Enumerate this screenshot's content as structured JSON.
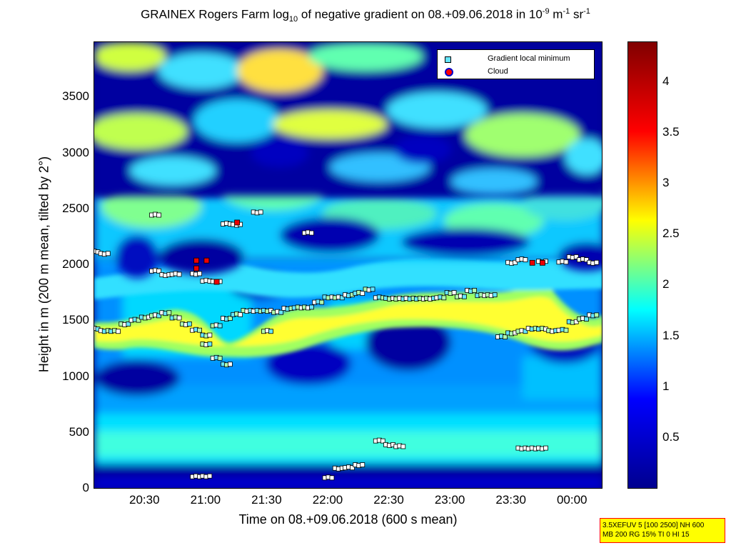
{
  "title": {
    "part1": "GRAINEX Rogers Farm log",
    "sub": "10",
    "part2": " of negative gradient on 08.+09.06.2018 in 10",
    "sup1": "-9",
    "part3": " m",
    "sup2": "-1",
    "part4": " sr",
    "sup3": "-1"
  },
  "chart_data": {
    "type": "heatmap",
    "xlabel": "Time on 08.+09.06.2018 (600 s mean)",
    "ylabel": "Height in m (200 m mean, tilted by 2°)",
    "x_range": [
      "20:05",
      "00:15"
    ],
    "ylim": [
      0,
      4000
    ],
    "x_ticks": [
      "20:30",
      "21:00",
      "21:30",
      "22:00",
      "22:30",
      "23:00",
      "23:30",
      "00:00"
    ],
    "y_ticks": [
      0,
      500,
      1000,
      1500,
      2000,
      2500,
      3000,
      3500
    ],
    "colorbar": {
      "range": [
        0,
        4.4
      ],
      "ticks": [
        "0.5",
        "1",
        "1.5",
        "2",
        "2.5",
        "3",
        "3.5",
        "4"
      ],
      "colors": [
        "#00008f",
        "#0000ff",
        "#00ffff",
        "#ffff00",
        "#ff0000",
        "#800000"
      ]
    },
    "legend": {
      "position": "top-right",
      "entries": [
        "Gradient local minimum",
        "Cloud"
      ]
    },
    "series": [
      {
        "name": "Gradient local minimum",
        "points": [
          [
            "20:05",
            1440
          ],
          [
            "20:10",
            1420
          ],
          [
            "20:15",
            1420
          ],
          [
            "20:20",
            1480
          ],
          [
            "20:25",
            1520
          ],
          [
            "20:30",
            1540
          ],
          [
            "20:35",
            1560
          ],
          [
            "20:40",
            1580
          ],
          [
            "20:45",
            1540
          ],
          [
            "20:50",
            1480
          ],
          [
            "20:55",
            1430
          ],
          [
            "21:00",
            1380
          ],
          [
            "21:05",
            1470
          ],
          [
            "21:10",
            1530
          ],
          [
            "21:15",
            1570
          ],
          [
            "21:20",
            1600
          ],
          [
            "21:25",
            1600
          ],
          [
            "21:30",
            1600
          ],
          [
            "21:35",
            1590
          ],
          [
            "21:40",
            1620
          ],
          [
            "21:45",
            1630
          ],
          [
            "21:50",
            1630
          ],
          [
            "21:55",
            1680
          ],
          [
            "22:00",
            1720
          ],
          [
            "22:05",
            1720
          ],
          [
            "22:10",
            1740
          ],
          [
            "22:15",
            1760
          ],
          [
            "22:20",
            1790
          ],
          [
            "22:25",
            1720
          ],
          [
            "22:30",
            1710
          ],
          [
            "22:35",
            1710
          ],
          [
            "22:40",
            1710
          ],
          [
            "22:45",
            1710
          ],
          [
            "22:50",
            1710
          ],
          [
            "22:55",
            1720
          ],
          [
            "23:00",
            1760
          ],
          [
            "23:05",
            1730
          ],
          [
            "23:10",
            1780
          ],
          [
            "23:15",
            1740
          ],
          [
            "23:20",
            1740
          ],
          [
            "23:25",
            1370
          ],
          [
            "23:30",
            1400
          ],
          [
            "23:35",
            1420
          ],
          [
            "23:40",
            1440
          ],
          [
            "23:45",
            1440
          ],
          [
            "23:50",
            1420
          ],
          [
            "23:55",
            1430
          ],
          [
            "00:00",
            1500
          ],
          [
            "00:05",
            1530
          ],
          [
            "00:10",
            1560
          ],
          [
            "20:05",
            2130
          ],
          [
            "20:10",
            2110
          ],
          [
            "20:35",
            1960
          ],
          [
            "20:40",
            1920
          ],
          [
            "20:45",
            1930
          ],
          [
            "20:55",
            1930
          ],
          [
            "21:00",
            1870
          ],
          [
            "21:05",
            1860
          ],
          [
            "21:10",
            2380
          ],
          [
            "21:15",
            2370
          ],
          [
            "20:35",
            2460
          ],
          [
            "21:25",
            2480
          ],
          [
            "21:50",
            2300
          ],
          [
            "21:00",
            1300
          ],
          [
            "21:05",
            1180
          ],
          [
            "21:10",
            1120
          ],
          [
            "21:30",
            1420
          ],
          [
            "23:30",
            2030
          ],
          [
            "23:35",
            2060
          ],
          [
            "23:45",
            2040
          ],
          [
            "23:55",
            2040
          ],
          [
            "00:00",
            2080
          ],
          [
            "00:05",
            2060
          ],
          [
            "00:10",
            2030
          ],
          [
            "20:55",
            120
          ],
          [
            "21:00",
            120
          ],
          [
            "22:00",
            110
          ],
          [
            "22:05",
            190
          ],
          [
            "22:10",
            200
          ],
          [
            "22:15",
            220
          ],
          [
            "22:25",
            440
          ],
          [
            "22:30",
            400
          ],
          [
            "22:35",
            390
          ],
          [
            "23:35",
            370
          ],
          [
            "23:40",
            370
          ],
          [
            "23:45",
            370
          ]
        ]
      },
      {
        "name": "Cloud",
        "points": [
          [
            "20:55",
            2050
          ],
          [
            "21:00",
            2050
          ],
          [
            "20:55",
            1980
          ],
          [
            "21:05",
            1860
          ],
          [
            "21:15",
            2390
          ],
          [
            "23:40",
            2030
          ],
          [
            "23:45",
            2030
          ]
        ]
      }
    ]
  },
  "info_box": {
    "line1": "3.5XEFUV 5 [100 2500] NH 600",
    "line2": "MB 200 RG 15% TI 0 HI 15"
  }
}
